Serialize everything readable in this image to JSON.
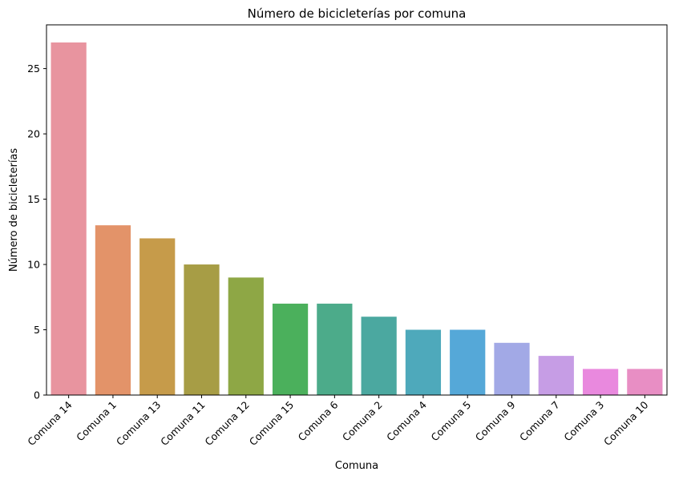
{
  "chart_data": {
    "type": "bar",
    "title": "Número de bicicleterías por comuna",
    "xlabel": "Comuna",
    "ylabel": "Número de bicicleterías",
    "categories": [
      "Comuna 14",
      "Comuna 1",
      "Comuna 13",
      "Comuna 11",
      "Comuna 12",
      "Comuna 15",
      "Comuna 6",
      "Comuna 2",
      "Comuna 4",
      "Comuna 5",
      "Comuna 9",
      "Comuna 7",
      "Comuna 3",
      "Comuna 10"
    ],
    "values": [
      27,
      13,
      12,
      10,
      9,
      7,
      7,
      6,
      5,
      5,
      4,
      3,
      2,
      2
    ],
    "colors": [
      "#e8949f",
      "#e39369",
      "#c69b4a",
      "#a79d45",
      "#8ea745",
      "#4bb05c",
      "#4cab8a",
      "#4ba8a0",
      "#4ea9bb",
      "#55a8d8",
      "#a2a9e6",
      "#c69de5",
      "#e989de",
      "#e88ec4"
    ],
    "ylim": [
      0,
      28.35
    ],
    "yticks": [
      0,
      5,
      10,
      15,
      20,
      25
    ],
    "grid": false,
    "legend": "none"
  }
}
